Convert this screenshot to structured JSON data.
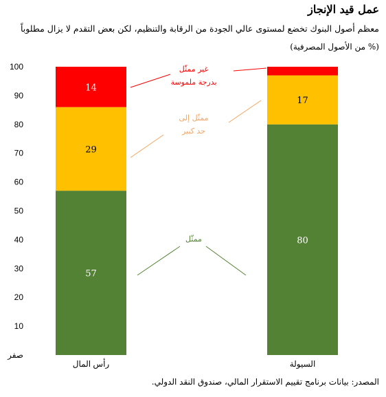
{
  "title": "عمل قيد الإنجاز",
  "subtitle": "معظم أصول البنوك تخضع لمستوى عالي الجودة من الرقابة والتنظيم، لكن بعض التقدم لا يزال مطلوباً",
  "unit": "(% من الأصول المصرفية)",
  "source": "المصدر: بيانات برنامج تقييم الاستقرار المالي، صندوق النقد الدولي.",
  "colors": {
    "represented": "#548235",
    "materially": "#FFC000",
    "not_represented": "#FF0000",
    "annotation_red": "#FF0000",
    "annotation_orange": "#F4A460",
    "annotation_green": "#548235"
  },
  "chart_data": {
    "type": "bar",
    "stacked": true,
    "categories": [
      "رأس المال",
      "السيولة"
    ],
    "series": [
      {
        "name": "ممثّل",
        "values": [
          57,
          80
        ],
        "color": "#548235"
      },
      {
        "name": "ممثّل إلى حد كبير",
        "values": [
          29,
          17
        ],
        "color": "#FFC000"
      },
      {
        "name": "غير ممثّل بدرجة ملموسة",
        "values": [
          14,
          3
        ],
        "color": "#FF0000"
      }
    ],
    "data_labels": [
      [
        "57",
        "80"
      ],
      [
        "29",
        "17"
      ],
      [
        "14",
        ""
      ]
    ],
    "ylim": [
      0,
      100
    ],
    "yticks": [
      0,
      10,
      20,
      30,
      40,
      50,
      60,
      70,
      80,
      90,
      100
    ],
    "ytick_labels": [
      "صفر",
      "10",
      "20",
      "30",
      "40",
      "50",
      "60",
      "70",
      "80",
      "90",
      "100"
    ],
    "annotations": [
      {
        "lines": [
          "غير ممثّل",
          "بدرجة ملموسة"
        ],
        "series": 2,
        "color": "#FF0000"
      },
      {
        "lines": [
          "ممثّل إلى",
          "حد كبير"
        ],
        "series": 1,
        "color": "#F4A460"
      },
      {
        "lines": [
          "ممثّل"
        ],
        "series": 0,
        "color": "#548235"
      }
    ],
    "grid": false,
    "legend": "inline"
  }
}
